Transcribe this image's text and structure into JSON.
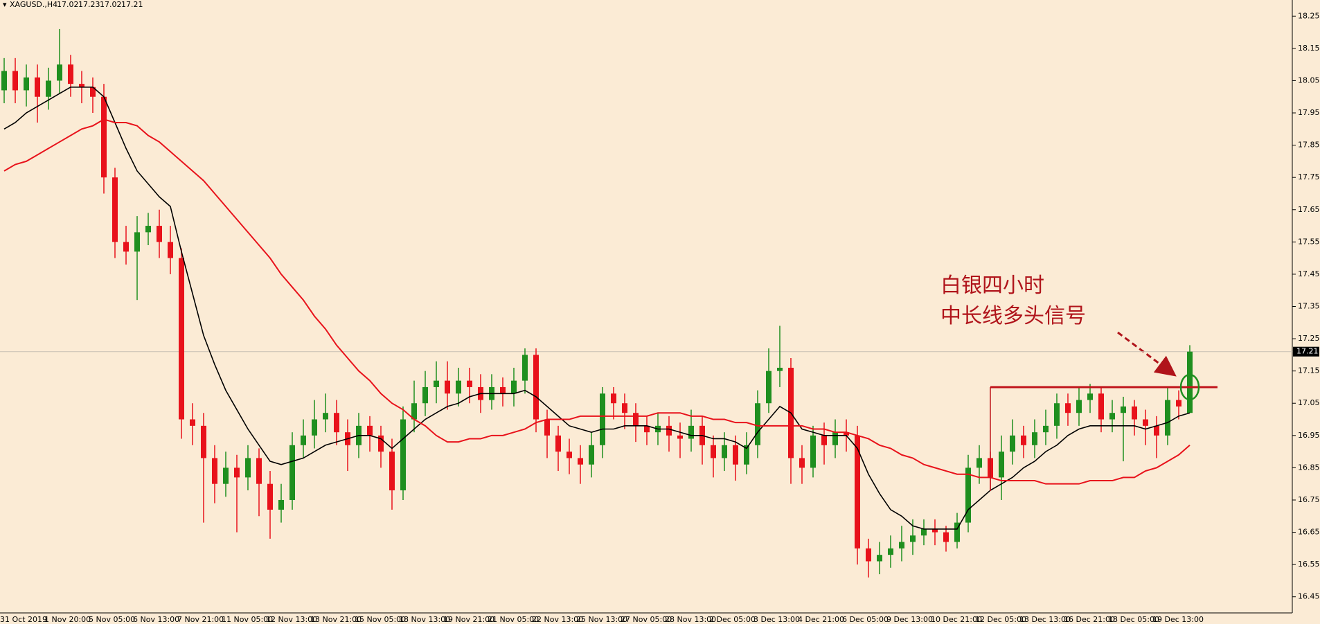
{
  "chart_data": {
    "type": "candlestick",
    "title": "XAGUSD.,H4",
    "categories": [
      "31 Oct 2019",
      null,
      null,
      null,
      "1 Nov 20:00",
      null,
      null,
      null,
      "5 Nov 05:00",
      null,
      null,
      null,
      "6 Nov 13:00",
      null,
      null,
      null,
      "7 Nov 21:00",
      null,
      null,
      null,
      "11 Nov 05:00",
      null,
      null,
      null,
      "12 Nov 13:00",
      null,
      null,
      null,
      "13 Nov 21:00",
      null,
      null,
      null,
      "15 Nov 05:00",
      null,
      null,
      null,
      "18 Nov 13:00",
      null,
      null,
      null,
      "19 Nov 21:00",
      null,
      null,
      null,
      "21 Nov 05:00",
      null,
      null,
      null,
      "22 Nov 13:00",
      null,
      null,
      null,
      "25 Nov 13:00",
      null,
      null,
      null,
      "27 Nov 05:00",
      null,
      null,
      null,
      "28 Nov 13:00",
      null,
      null,
      null,
      "2 Dec 05:00",
      null,
      null,
      null,
      "3 Dec 13:00",
      null,
      null,
      null,
      "4 Dec 21:00",
      null,
      null,
      null,
      "6 Dec 05:00",
      null,
      null,
      null,
      "9 Dec 13:00",
      null,
      null,
      null,
      "10 Dec 21:00",
      null,
      null,
      null,
      "12 Dec 05:00",
      null,
      null,
      null,
      "13 Dec 13:00",
      null,
      null,
      null,
      "16 Dec 21:00",
      null,
      null,
      null,
      "18 Dec 05:00",
      null,
      null,
      null,
      "19 Dec 13:00",
      null,
      null,
      null
    ],
    "open": [
      18.02,
      18.08,
      18.02,
      18.06,
      18.0,
      18.05,
      18.1,
      18.04,
      18.03,
      18.0,
      17.75,
      17.55,
      17.52,
      17.58,
      17.6,
      17.55,
      17.5,
      17.0,
      16.98,
      16.88,
      16.8,
      16.85,
      16.82,
      16.88,
      16.8,
      16.72,
      16.75,
      16.92,
      16.95,
      17.0,
      17.02,
      16.96,
      16.92,
      16.98,
      16.95,
      16.9,
      16.78,
      17.0,
      17.05,
      17.1,
      17.12,
      17.08,
      17.12,
      17.1,
      17.06,
      17.1,
      17.08,
      17.12,
      17.2,
      17.0,
      16.95,
      16.9,
      16.88,
      16.86,
      16.92,
      17.08,
      17.05,
      17.02,
      16.98,
      16.96,
      16.98,
      16.95,
      16.94,
      16.98,
      16.92,
      16.88,
      16.92,
      16.86,
      16.92,
      17.05,
      17.15,
      17.16,
      16.88,
      16.85,
      16.95,
      16.92,
      16.96,
      16.95,
      16.6,
      16.56,
      16.58,
      16.6,
      16.62,
      16.64,
      16.66,
      16.65,
      16.62,
      16.68,
      16.85,
      16.88,
      16.82,
      16.9,
      16.95,
      16.92,
      16.96,
      16.98,
      17.05,
      17.02,
      17.06,
      17.08,
      17.0,
      17.02,
      17.04,
      17.0,
      16.98,
      16.95,
      17.06,
      17.02
    ],
    "high": [
      18.12,
      18.12,
      18.1,
      18.1,
      18.09,
      18.21,
      18.13,
      18.08,
      18.06,
      18.04,
      17.78,
      17.6,
      17.63,
      17.64,
      17.65,
      17.6,
      17.53,
      17.05,
      17.02,
      16.92,
      16.9,
      16.89,
      16.92,
      16.91,
      16.84,
      16.8,
      16.96,
      17.0,
      17.06,
      17.08,
      17.06,
      17.0,
      17.02,
      17.01,
      16.98,
      16.94,
      17.04,
      17.12,
      17.15,
      17.18,
      17.18,
      17.16,
      17.16,
      17.14,
      17.14,
      17.13,
      17.16,
      17.22,
      17.22,
      17.03,
      16.98,
      16.94,
      16.92,
      16.96,
      17.1,
      17.1,
      17.08,
      17.05,
      17.01,
      17.02,
      17.01,
      16.99,
      17.03,
      17.01,
      16.95,
      16.96,
      16.95,
      16.96,
      17.09,
      17.22,
      17.29,
      17.19,
      16.92,
      16.98,
      16.99,
      17.0,
      17.0,
      16.98,
      16.63,
      16.62,
      16.64,
      16.67,
      16.69,
      16.69,
      16.69,
      16.67,
      16.71,
      16.89,
      16.92,
      16.9,
      16.95,
      17.0,
      16.98,
      17.0,
      17.03,
      17.08,
      17.08,
      17.1,
      17.11,
      17.1,
      17.06,
      17.07,
      17.06,
      17.03,
      17.01,
      17.1,
      17.09,
      17.23
    ],
    "low": [
      17.98,
      17.98,
      17.97,
      17.92,
      17.96,
      18.01,
      18.0,
      17.98,
      17.95,
      17.7,
      17.5,
      17.48,
      17.37,
      17.54,
      17.5,
      17.45,
      16.94,
      16.92,
      16.68,
      16.74,
      16.76,
      16.65,
      16.78,
      16.7,
      16.63,
      16.68,
      16.72,
      16.88,
      16.91,
      16.96,
      16.92,
      16.84,
      16.88,
      16.9,
      16.85,
      16.72,
      16.75,
      16.96,
      17.01,
      17.05,
      17.03,
      17.04,
      17.05,
      17.02,
      17.03,
      17.04,
      17.04,
      17.08,
      16.96,
      16.88,
      16.84,
      16.83,
      16.8,
      16.82,
      16.88,
      17.0,
      16.97,
      16.93,
      16.92,
      16.92,
      16.9,
      16.88,
      16.9,
      16.86,
      16.82,
      16.84,
      16.81,
      16.83,
      16.88,
      17.02,
      17.1,
      16.8,
      16.8,
      16.82,
      16.86,
      16.88,
      16.9,
      16.55,
      16.51,
      16.52,
      16.54,
      16.56,
      16.58,
      16.61,
      16.61,
      16.59,
      16.6,
      16.65,
      16.8,
      16.78,
      16.75,
      16.86,
      16.88,
      16.88,
      16.92,
      16.94,
      16.98,
      16.98,
      17.02,
      16.96,
      16.96,
      16.87,
      16.95,
      16.92,
      16.88,
      16.92,
      17.0,
      17.02
    ],
    "close": [
      18.08,
      18.02,
      18.06,
      18.0,
      18.05,
      18.1,
      18.04,
      18.03,
      18.0,
      17.75,
      17.55,
      17.52,
      17.58,
      17.6,
      17.55,
      17.5,
      17.0,
      16.98,
      16.88,
      16.8,
      16.85,
      16.82,
      16.88,
      16.8,
      16.72,
      16.75,
      16.92,
      16.95,
      17.0,
      17.02,
      16.96,
      16.92,
      16.98,
      16.95,
      16.9,
      16.78,
      17.0,
      17.05,
      17.1,
      17.12,
      17.08,
      17.12,
      17.1,
      17.06,
      17.1,
      17.08,
      17.12,
      17.2,
      17.0,
      16.95,
      16.9,
      16.88,
      16.86,
      16.92,
      17.08,
      17.05,
      17.02,
      16.98,
      16.96,
      16.98,
      16.95,
      16.94,
      16.98,
      16.92,
      16.88,
      16.92,
      16.86,
      16.92,
      17.05,
      17.15,
      17.16,
      16.88,
      16.85,
      16.95,
      16.92,
      16.96,
      16.95,
      16.6,
      16.56,
      16.58,
      16.6,
      16.62,
      16.64,
      16.66,
      16.65,
      16.62,
      16.68,
      16.85,
      16.88,
      16.82,
      16.9,
      16.95,
      16.92,
      16.96,
      16.98,
      17.05,
      17.02,
      17.06,
      17.08,
      17.0,
      17.02,
      17.04,
      17.0,
      16.98,
      16.95,
      17.06,
      17.04,
      17.21
    ],
    "up_color": "#1f8f1f",
    "down_color": "#e8121b",
    "moving_averages": [
      {
        "color": "#000000",
        "values": [
          17.9,
          17.92,
          17.95,
          17.97,
          17.99,
          18.01,
          18.03,
          18.03,
          18.03,
          18.0,
          17.92,
          17.84,
          17.77,
          17.73,
          17.69,
          17.66,
          17.52,
          17.39,
          17.26,
          17.17,
          17.09,
          17.03,
          16.97,
          16.92,
          16.87,
          16.86,
          16.87,
          16.88,
          16.9,
          16.92,
          16.93,
          16.94,
          16.95,
          16.95,
          16.94,
          16.91,
          16.94,
          16.97,
          17.0,
          17.02,
          17.04,
          17.05,
          17.07,
          17.08,
          17.08,
          17.08,
          17.08,
          17.09,
          17.07,
          17.04,
          17.01,
          16.98,
          16.97,
          16.96,
          16.97,
          16.97,
          16.98,
          16.98,
          16.98,
          16.97,
          16.97,
          16.96,
          16.95,
          16.95,
          16.94,
          16.94,
          16.93,
          16.91,
          16.96,
          17.0,
          17.04,
          17.02,
          16.97,
          16.96,
          16.95,
          16.95,
          16.95,
          16.91,
          16.83,
          16.77,
          16.72,
          16.7,
          16.67,
          16.66,
          16.66,
          16.66,
          16.66,
          16.72,
          16.75,
          16.78,
          16.8,
          16.82,
          16.85,
          16.87,
          16.9,
          16.92,
          16.95,
          16.97,
          16.98,
          16.98,
          16.98,
          16.98,
          16.98,
          16.97,
          16.98,
          16.99,
          17.01,
          17.02
        ]
      },
      {
        "color": "#e8121b",
        "values": [
          17.77,
          17.79,
          17.8,
          17.82,
          17.84,
          17.86,
          17.88,
          17.9,
          17.91,
          17.93,
          17.92,
          17.92,
          17.91,
          17.88,
          17.86,
          17.83,
          17.8,
          17.77,
          17.74,
          17.7,
          17.66,
          17.62,
          17.58,
          17.54,
          17.5,
          17.45,
          17.41,
          17.37,
          17.32,
          17.28,
          17.23,
          17.19,
          17.15,
          17.12,
          17.08,
          17.05,
          17.03,
          17.0,
          16.98,
          16.95,
          16.93,
          16.93,
          16.94,
          16.94,
          16.95,
          16.95,
          16.96,
          16.97,
          16.99,
          17.0,
          17.0,
          17.0,
          17.01,
          17.01,
          17.01,
          17.01,
          17.01,
          17.01,
          17.01,
          17.02,
          17.02,
          17.02,
          17.01,
          17.01,
          17.0,
          17.0,
          16.99,
          16.99,
          16.98,
          16.98,
          16.98,
          16.98,
          16.98,
          16.97,
          16.97,
          16.96,
          16.96,
          16.95,
          16.94,
          16.92,
          16.91,
          16.89,
          16.88,
          16.86,
          16.85,
          16.84,
          16.83,
          16.83,
          16.82,
          16.82,
          16.81,
          16.81,
          16.81,
          16.81,
          16.8,
          16.8,
          16.8,
          16.8,
          16.81,
          16.81,
          16.81,
          16.82,
          16.82,
          16.84,
          16.85,
          16.87,
          16.89,
          16.92
        ]
      }
    ],
    "ylim": [
      16.4,
      18.3
    ],
    "yticks": [
      16.45,
      16.55,
      16.65,
      16.75,
      16.85,
      16.95,
      17.05,
      17.15,
      17.25,
      17.35,
      17.45,
      17.55,
      17.65,
      17.75,
      17.85,
      17.95,
      18.05,
      18.15,
      18.25
    ],
    "grid": false,
    "price_line": true,
    "level": {
      "value": 17.1,
      "start": 89,
      "color": "#c0141b"
    },
    "annotations": [
      "白银四小时",
      "中长线多头信号"
    ]
  }
}
